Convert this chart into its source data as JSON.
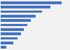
{
  "values": [
    3800,
    3100,
    2600,
    2200,
    1900,
    1650,
    1450,
    1250,
    1050,
    800,
    350
  ],
  "bar_color": "#4472c4",
  "background_color": "#f2f2f2",
  "bar_background": "#f2f2f2",
  "xlim": [
    0,
    4200
  ],
  "bar_height": 0.55
}
